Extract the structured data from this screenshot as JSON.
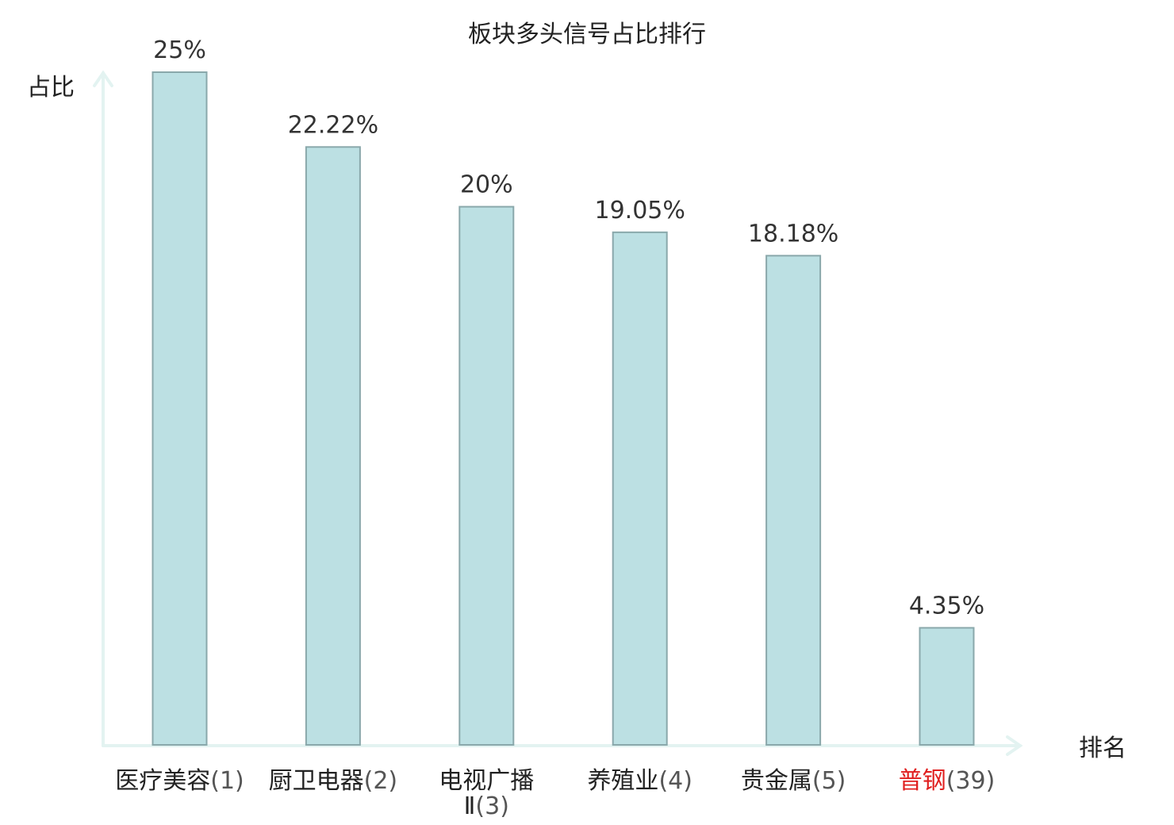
{
  "chart_data": {
    "type": "bar",
    "title": "板块多头信号占比排行",
    "ylabel": "占比",
    "xlabel": "排名",
    "ylim": [
      0,
      25
    ],
    "grid": false,
    "legend": "none",
    "bar_color": "#bce0e3",
    "bar_border_color": "#8aa8ab",
    "axis_color": "#e3f3f1",
    "highlight_color": "#e02020",
    "categories": [
      {
        "name": "医疗美容",
        "rank": "(1)",
        "highlight": false
      },
      {
        "name": "厨卫电器",
        "rank": "(2)",
        "highlight": false
      },
      {
        "name": "电视广播",
        "name_line2": "Ⅱ",
        "rank": "(3)",
        "highlight": false
      },
      {
        "name": "养殖业",
        "rank": "(4)",
        "highlight": false
      },
      {
        "name": "贵金属",
        "rank": "(5)",
        "highlight": false
      },
      {
        "name": "普钢",
        "rank": "(39)",
        "highlight": true
      }
    ],
    "values": [
      25,
      22.22,
      20,
      19.05,
      18.18,
      4.35
    ],
    "value_labels": [
      "25%",
      "22.22%",
      "20%",
      "19.05%",
      "18.18%",
      "4.35%"
    ]
  }
}
